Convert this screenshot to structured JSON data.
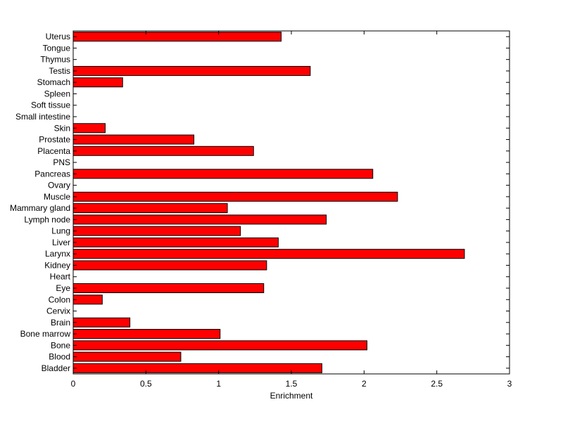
{
  "chart_data": {
    "type": "bar",
    "orientation": "horizontal",
    "title": "",
    "xlabel": "Enrichment",
    "ylabel": "",
    "xlim": [
      0,
      3
    ],
    "xticks": [
      {
        "value": 0,
        "label": "0"
      },
      {
        "value": 0.5,
        "label": "0.5"
      },
      {
        "value": 1,
        "label": "1"
      },
      {
        "value": 1.5,
        "label": "1.5"
      },
      {
        "value": 2,
        "label": "2"
      },
      {
        "value": 2.5,
        "label": "2.5"
      },
      {
        "value": 3,
        "label": "3"
      }
    ],
    "grid": false,
    "bar_color": "#ff0000",
    "bar_edge_color": "#000000",
    "categories": [
      "Bladder",
      "Blood",
      "Bone",
      "Bone marrow",
      "Brain",
      "Cervix",
      "Colon",
      "Eye",
      "Heart",
      "Kidney",
      "Larynx",
      "Liver",
      "Lung",
      "Lymph node",
      "Mammary gland",
      "Muscle",
      "Ovary",
      "Pancreas",
      "PNS",
      "Placenta",
      "Prostate",
      "Skin",
      "Small intestine",
      "Soft tissue",
      "Spleen",
      "Stomach",
      "Testis",
      "Thymus",
      "Tongue",
      "Uterus"
    ],
    "values": [
      1.71,
      0.74,
      2.02,
      1.01,
      0.39,
      0,
      0.2,
      1.31,
      0,
      1.33,
      2.69,
      1.41,
      1.15,
      1.74,
      1.06,
      2.23,
      0,
      2.06,
      0,
      1.24,
      0.83,
      0.22,
      0,
      0,
      0,
      0.34,
      1.63,
      0,
      0,
      1.43
    ]
  }
}
